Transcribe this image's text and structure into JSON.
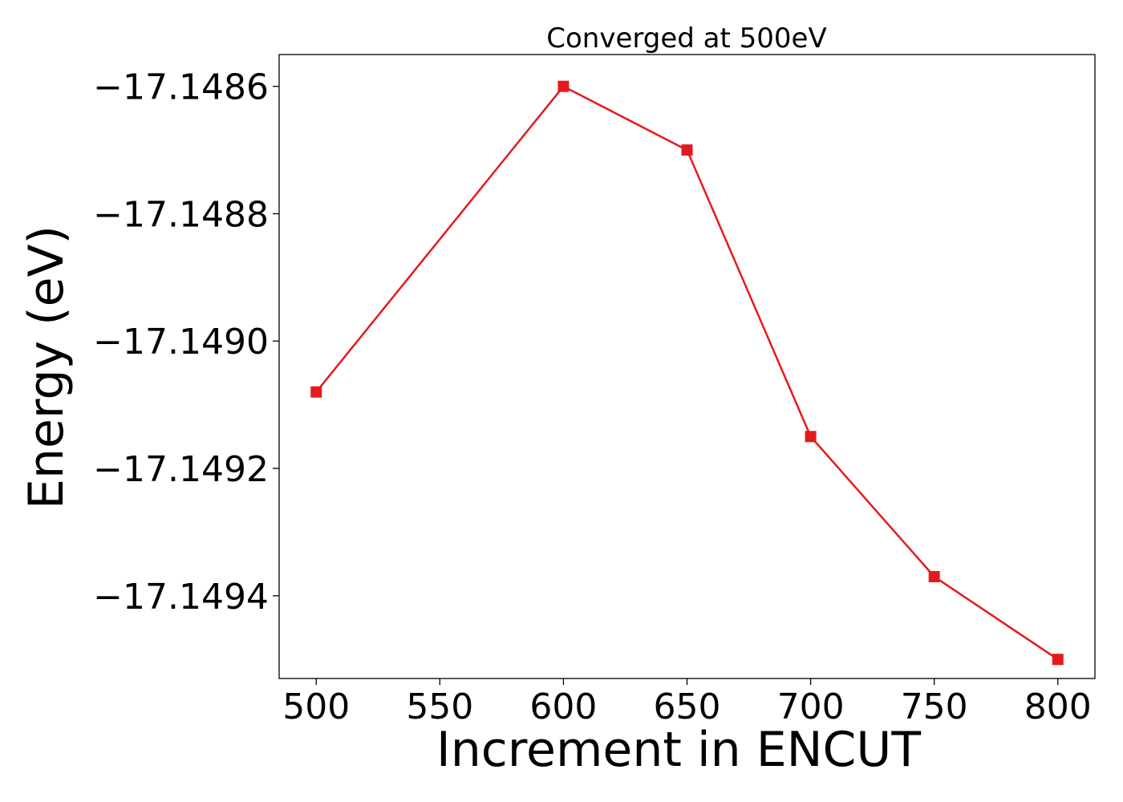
{
  "chart_data": {
    "type": "line",
    "title": "Converged at 500eV",
    "xlabel": "Increment in ENCUT",
    "ylabel": "Energy (eV)",
    "xlim": [
      485,
      815
    ],
    "ylim": [
      -17.14953,
      -17.14855
    ],
    "x_ticks": [
      500,
      550,
      600,
      650,
      700,
      750,
      800
    ],
    "x_tick_labels": [
      "500",
      "550",
      "600",
      "650",
      "700",
      "750",
      "800"
    ],
    "y_ticks": [
      -17.1486,
      -17.1488,
      -17.149,
      -17.1492,
      -17.1494
    ],
    "y_tick_labels": [
      "−17.1486",
      "−17.1488",
      "−17.1490",
      "−17.1492",
      "−17.1494"
    ],
    "grid": false,
    "marker": "square",
    "series": [
      {
        "color": "#e41a1c",
        "x": [
          500,
          600,
          650,
          700,
          750,
          800
        ],
        "y": [
          -17.14908,
          -17.1486,
          -17.1487,
          -17.14915,
          -17.14937,
          -17.1495
        ]
      }
    ]
  }
}
